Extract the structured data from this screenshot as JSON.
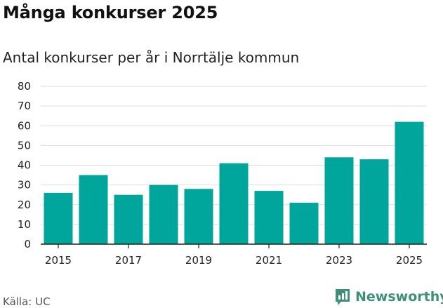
{
  "header": {
    "title": "Många konkurser 2025",
    "subtitle": "Antal konkurser per år i Norrtälje kommun"
  },
  "footer": {
    "source": "Källa: UC",
    "brand": "Newsworthy",
    "brand_icon": "bar-chart-logo-icon"
  },
  "colors": {
    "bar": "#00a69c",
    "grid": "#dddddd",
    "axis": "#222222",
    "brand": "#3f8f7b"
  },
  "chart_data": {
    "type": "bar",
    "categories": [
      "2015",
      "2016",
      "2017",
      "2018",
      "2019",
      "2020",
      "2021",
      "2022",
      "2023",
      "2024",
      "2025"
    ],
    "values": [
      26,
      35,
      25,
      30,
      28,
      41,
      27,
      21,
      44,
      43,
      62
    ],
    "xtick_labels": [
      "2015",
      "",
      "2017",
      "",
      "2019",
      "",
      "2021",
      "",
      "2023",
      "",
      "2025"
    ],
    "yticks": [
      0,
      10,
      20,
      30,
      40,
      50,
      60,
      70,
      80
    ],
    "ylim": [
      0,
      80
    ],
    "grid": true,
    "xlabel": "",
    "ylabel": ""
  }
}
